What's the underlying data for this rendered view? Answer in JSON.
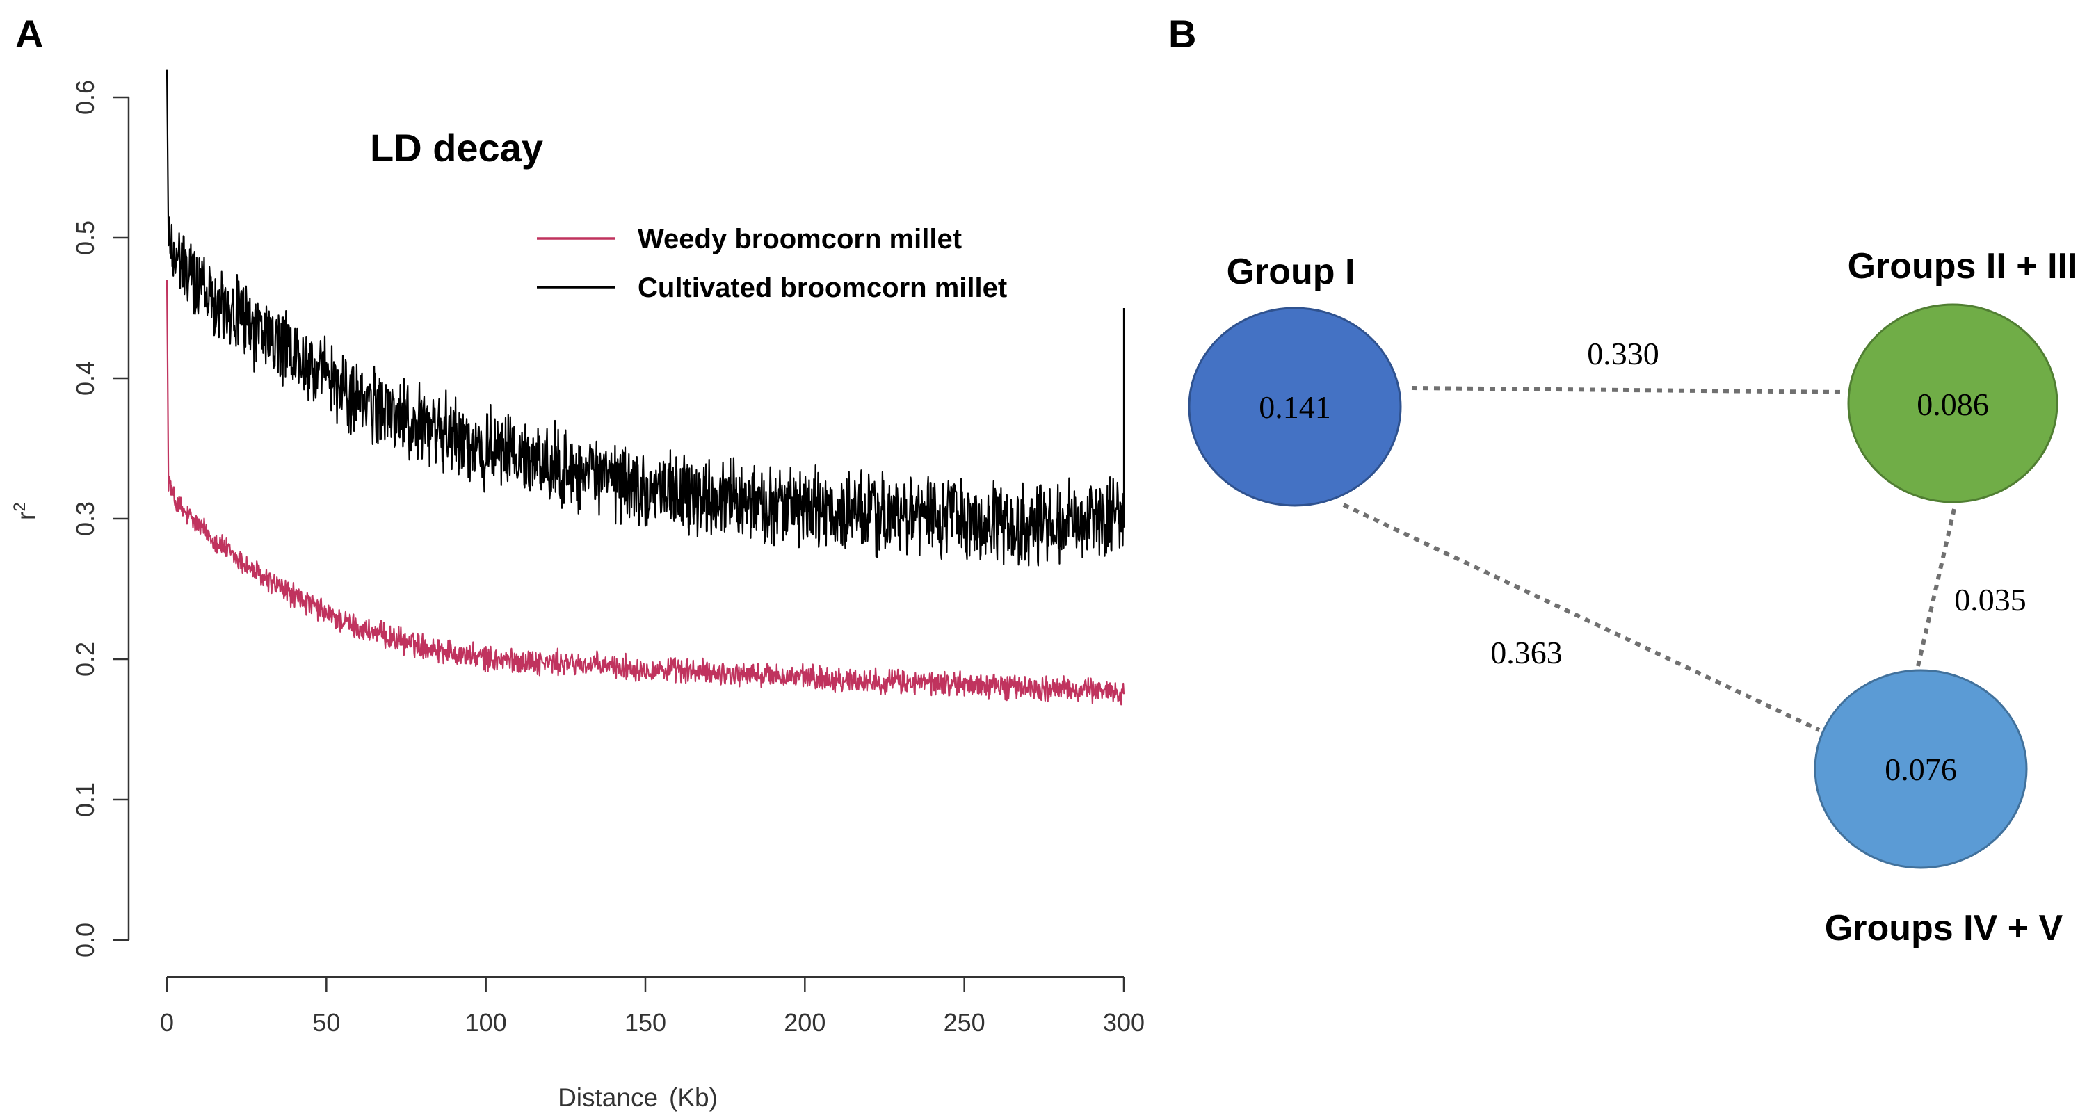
{
  "panels": {
    "a_label": "A",
    "b_label": "B"
  },
  "chart_data": [
    {
      "type": "line",
      "title": "LD decay",
      "xlabel": "Distance",
      "xlabel_unit": "(Kb)",
      "ylabel": "r",
      "ylabel_sup": "2",
      "xlim": [
        0,
        300
      ],
      "ylim": [
        0,
        0.6
      ],
      "xticks": [
        0,
        50,
        100,
        150,
        200,
        250,
        300
      ],
      "xtick_labels": [
        "0",
        "50",
        "100",
        "150",
        "200",
        "250",
        "300"
      ],
      "yticks": [
        0.0,
        0.1,
        0.2,
        0.3,
        0.4,
        0.5,
        0.6
      ],
      "ytick_labels": [
        "0.0",
        "0.1",
        "0.2",
        "0.3",
        "0.4",
        "0.5",
        "0.6"
      ],
      "legend_position": "top-right",
      "series": [
        {
          "name": "Weedy broomcorn millet",
          "color": "#c0335e",
          "x": [
            0,
            0.5,
            2,
            5,
            10,
            20,
            30,
            40,
            50,
            60,
            75,
            100,
            125,
            150,
            175,
            200,
            225,
            250,
            275,
            300
          ],
          "y": [
            0.47,
            0.33,
            0.315,
            0.305,
            0.295,
            0.275,
            0.258,
            0.245,
            0.232,
            0.222,
            0.212,
            0.2,
            0.197,
            0.193,
            0.19,
            0.187,
            0.184,
            0.182,
            0.179,
            0.177
          ],
          "noise": 0.007
        },
        {
          "name": "Cultivated broomcorn millet",
          "color": "#000000",
          "x": [
            0,
            0.5,
            2,
            5,
            10,
            20,
            30,
            40,
            50,
            60,
            75,
            100,
            125,
            150,
            175,
            200,
            225,
            250,
            275,
            300
          ],
          "y": [
            0.62,
            0.5,
            0.49,
            0.478,
            0.468,
            0.45,
            0.432,
            0.415,
            0.4,
            0.385,
            0.37,
            0.35,
            0.335,
            0.322,
            0.313,
            0.307,
            0.302,
            0.3,
            0.296,
            0.3
          ],
          "noise": 0.022
        }
      ]
    },
    {
      "type": "network",
      "nodes": [
        {
          "id": "g1",
          "name": "Group I",
          "value": "0.141",
          "color": "#4472c4"
        },
        {
          "id": "g23",
          "name": "Groups II + III",
          "value": "0.086",
          "color": "#70ad47"
        },
        {
          "id": "g45",
          "name": "Groups IV + V",
          "value": "0.076",
          "color": "#5b9bd5"
        }
      ],
      "edges": [
        {
          "from": "g1",
          "to": "g23",
          "value": "0.330"
        },
        {
          "from": "g1",
          "to": "g45",
          "value": "0.363"
        },
        {
          "from": "g23",
          "to": "g45",
          "value": "0.035"
        }
      ]
    }
  ]
}
